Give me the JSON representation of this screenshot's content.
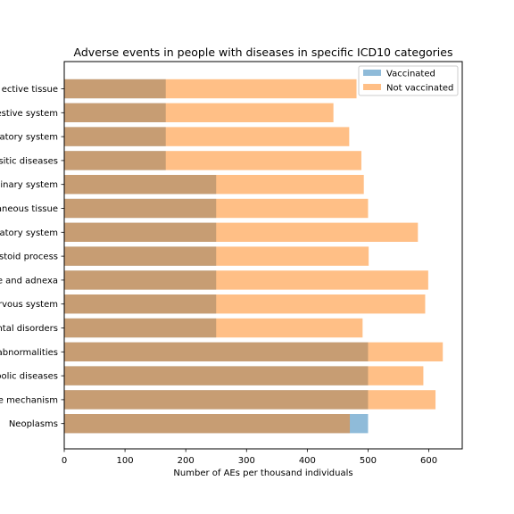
{
  "chart_data": {
    "type": "bar",
    "orientation": "horizontal",
    "title": "Adverse events in people with diseases in specific ICD10 categories",
    "xlabel": "Number of AEs per thousand individuals",
    "ylabel": "",
    "xlim": [
      0,
      655
    ],
    "xticks": [
      0,
      100,
      200,
      300,
      400,
      500,
      600
    ],
    "grid": false,
    "legend_position": "top-right",
    "categories": [
      "ective tissue",
      "estive system",
      "atory system",
      "sitic diseases",
      "inary system",
      "aneous tissue",
      "atory system",
      "stoid process",
      "e and adnexa",
      "rvous system",
      "ntal disorders",
      "abnormalities",
      "bolic diseases",
      "e mechanism",
      "Neoplasms"
    ],
    "series": [
      {
        "name": "Vaccinated",
        "color": "#1f77b4",
        "opacity": 0.5,
        "values": [
          167,
          167,
          167,
          167,
          250,
          250,
          250,
          250,
          250,
          250,
          250,
          500,
          500,
          500,
          500
        ]
      },
      {
        "name": "Not vaccinated",
        "color": "#ff7f0e",
        "opacity": 0.5,
        "values": [
          481,
          443,
          469,
          489,
          493,
          500,
          582,
          501,
          599,
          594,
          491,
          623,
          591,
          611,
          470
        ]
      }
    ]
  }
}
